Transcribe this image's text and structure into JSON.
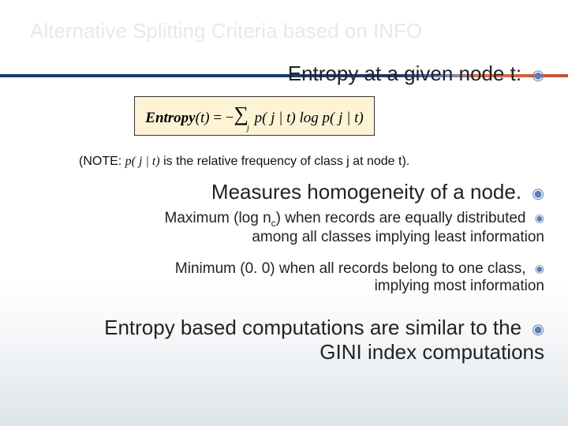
{
  "title": "Alternative Splitting Criteria based on INFO",
  "heading1": "Entropy at a given node t:",
  "formula_prefix": "Entropy",
  "formula_arg": "(t)",
  "formula_eq": " = −",
  "formula_sum": "∑",
  "formula_sub": "j",
  "formula_body": " p( j | t) log p( j | t)",
  "note_prefix": "(NOTE: ",
  "note_italic": "p( j | t)",
  "note_rest": " is the relative frequency of class j at node t).",
  "heading2": "Measures homogeneity of a node.",
  "max_line1_a": "Maximum (log n",
  "max_line1_sub": "c",
  "max_line1_b": ") when records are equally distributed",
  "max_line2": "among all classes implying least information",
  "min_line1": "Minimum (0. 0) when all records belong to one class,",
  "min_line2": "implying most information",
  "heading3_l1": "Entropy based computations are similar to the",
  "heading3_l2": "GINI index computations",
  "bullet_glyph": "◉"
}
